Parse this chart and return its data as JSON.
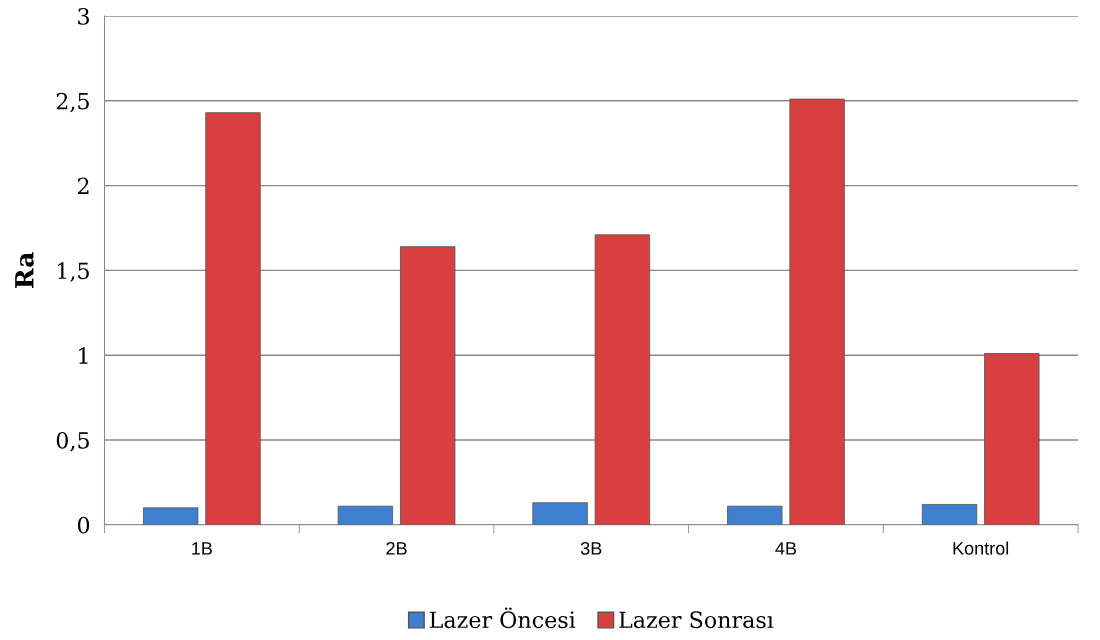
{
  "chart_data": {
    "type": "bar",
    "ylabel": "Ra",
    "categories": [
      "1B",
      "2B",
      "3B",
      "4B",
      "Kontrol"
    ],
    "series": [
      {
        "name": "Lazer Öncesi",
        "color": "#3f7fd0",
        "values": [
          0.1,
          0.11,
          0.13,
          0.11,
          0.12
        ]
      },
      {
        "name": "Lazer Sonrası",
        "color": "#d84040",
        "values": [
          2.43,
          1.64,
          1.71,
          2.51,
          1.01
        ]
      }
    ],
    "ylim": [
      0,
      3
    ],
    "yticks": [
      0,
      {
        "value": 0.5,
        "label": "0,5"
      },
      1,
      {
        "value": 1.5,
        "label": "1,5"
      },
      2,
      {
        "value": 2.5,
        "label": "2,5"
      },
      3
    ],
    "grid": "y",
    "legend": "bottom"
  }
}
